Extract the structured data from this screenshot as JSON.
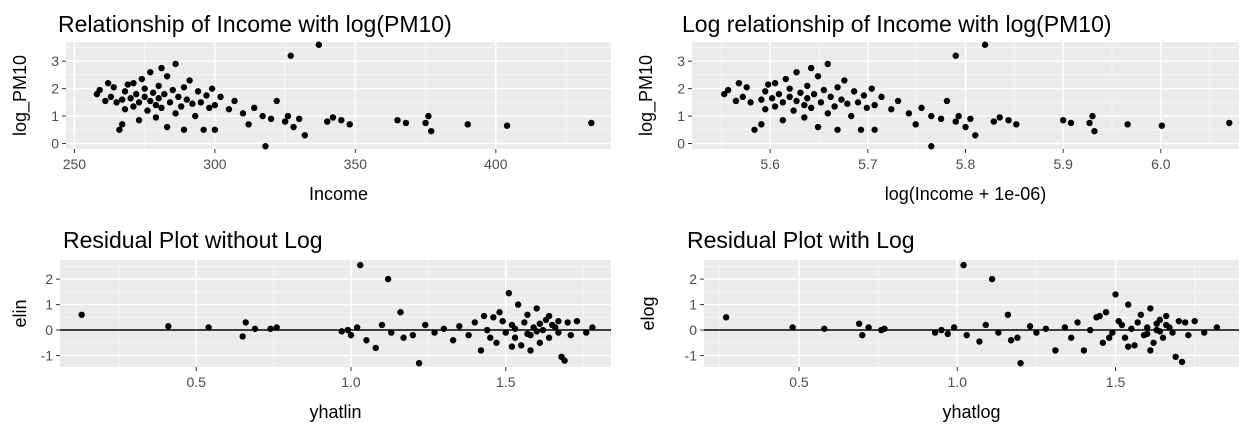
{
  "colors": {
    "panel_bg": "#ebebeb",
    "grid_major": "#ffffff",
    "grid_minor": "#f5f5f5",
    "point": "#000000",
    "hline": "#000000",
    "tick_text": "#4d4d4d"
  },
  "chart_data": [
    {
      "type": "scatter",
      "title": "Relationship of Income with log(PM10)",
      "xlabel": "Income",
      "ylabel": "log_PM10",
      "xlim": [
        247,
        441
      ],
      "ylim": [
        -0.2,
        3.7
      ],
      "xticks": [
        250,
        300,
        350,
        400
      ],
      "xtick_labels": [
        "250",
        "300",
        "350",
        "400"
      ],
      "yticks": [
        0,
        1,
        2,
        3
      ],
      "ytick_labels": [
        "0",
        "1",
        "2",
        "3"
      ],
      "grid": true,
      "hline": null,
      "points": [
        [
          258,
          1.8
        ],
        [
          259,
          1.95
        ],
        [
          261,
          1.55
        ],
        [
          262,
          2.2
        ],
        [
          263,
          1.7
        ],
        [
          264,
          2.05
        ],
        [
          265,
          1.5
        ],
        [
          266,
          0.5
        ],
        [
          267,
          0.7
        ],
        [
          267,
          1.6
        ],
        [
          268,
          1.25
        ],
        [
          268,
          1.9
        ],
        [
          269,
          2.15
        ],
        [
          270,
          1.65
        ],
        [
          271,
          1.35
        ],
        [
          271,
          2.2
        ],
        [
          272,
          1.8
        ],
        [
          273,
          0.85
        ],
        [
          273,
          1.5
        ],
        [
          274,
          2.35
        ],
        [
          275,
          1.7
        ],
        [
          275,
          2.0
        ],
        [
          276,
          1.2
        ],
        [
          277,
          1.55
        ],
        [
          277,
          2.6
        ],
        [
          278,
          1.85
        ],
        [
          279,
          0.95
        ],
        [
          279,
          1.4
        ],
        [
          280,
          2.1
        ],
        [
          280,
          1.65
        ],
        [
          281,
          2.75
        ],
        [
          281,
          1.3
        ],
        [
          282,
          1.8
        ],
        [
          283,
          0.6
        ],
        [
          283,
          2.45
        ],
        [
          284,
          1.5
        ],
        [
          285,
          1.95
        ],
        [
          286,
          1.1
        ],
        [
          286,
          2.9
        ],
        [
          287,
          1.7
        ],
        [
          288,
          1.35
        ],
        [
          289,
          0.5
        ],
        [
          289,
          2.05
        ],
        [
          290,
          1.6
        ],
        [
          291,
          2.3
        ],
        [
          292,
          1.45
        ],
        [
          293,
          1.0
        ],
        [
          294,
          1.9
        ],
        [
          295,
          1.5
        ],
        [
          296,
          0.5
        ],
        [
          297,
          1.75
        ],
        [
          298,
          1.3
        ],
        [
          299,
          2.0
        ],
        [
          300,
          1.4
        ],
        [
          300,
          0.5
        ],
        [
          302,
          1.7
        ],
        [
          305,
          1.25
        ],
        [
          307,
          1.55
        ],
        [
          310,
          1.1
        ],
        [
          312,
          0.7
        ],
        [
          314,
          1.3
        ],
        [
          317,
          1.0
        ],
        [
          318,
          -0.1
        ],
        [
          320,
          0.9
        ],
        [
          322,
          1.55
        ],
        [
          325,
          0.8
        ],
        [
          326,
          1.0
        ],
        [
          327,
          3.2
        ],
        [
          328,
          0.6
        ],
        [
          330,
          0.9
        ],
        [
          332,
          0.3
        ],
        [
          337,
          3.6
        ],
        [
          340,
          0.8
        ],
        [
          342,
          0.95
        ],
        [
          345,
          0.85
        ],
        [
          348,
          0.7
        ],
        [
          365,
          0.85
        ],
        [
          368,
          0.75
        ],
        [
          375,
          0.75
        ],
        [
          376,
          1.0
        ],
        [
          377,
          0.45
        ],
        [
          390,
          0.7
        ],
        [
          404,
          0.65
        ],
        [
          434,
          0.75
        ]
      ]
    },
    {
      "type": "scatter",
      "title": "Log relationship of Income with log(PM10)",
      "xlabel": "log(Income + 1e-06)",
      "ylabel": "log_PM10",
      "xlim": [
        5.52,
        6.08
      ],
      "ylim": [
        -0.2,
        3.7
      ],
      "xticks": [
        5.6,
        5.7,
        5.8,
        5.9,
        6.0
      ],
      "xtick_labels": [
        "5.6",
        "5.7",
        "5.8",
        "5.9",
        "6.0"
      ],
      "yticks": [
        0,
        1,
        2,
        3
      ],
      "ytick_labels": [
        "0",
        "1",
        "2",
        "3"
      ],
      "grid": true,
      "hline": null,
      "points": [
        [
          5.553,
          1.8
        ],
        [
          5.557,
          1.95
        ],
        [
          5.565,
          1.55
        ],
        [
          5.568,
          2.2
        ],
        [
          5.572,
          1.7
        ],
        [
          5.576,
          2.05
        ],
        [
          5.58,
          1.5
        ],
        [
          5.584,
          0.5
        ],
        [
          5.591,
          0.7
        ],
        [
          5.591,
          1.6
        ],
        [
          5.595,
          1.25
        ],
        [
          5.595,
          1.9
        ],
        [
          5.598,
          2.15
        ],
        [
          5.602,
          1.65
        ],
        [
          5.605,
          1.35
        ],
        [
          5.605,
          2.2
        ],
        [
          5.609,
          1.8
        ],
        [
          5.613,
          0.85
        ],
        [
          5.613,
          1.5
        ],
        [
          5.616,
          2.35
        ],
        [
          5.62,
          1.7
        ],
        [
          5.62,
          2.0
        ],
        [
          5.624,
          1.2
        ],
        [
          5.627,
          1.55
        ],
        [
          5.627,
          2.6
        ],
        [
          5.631,
          1.85
        ],
        [
          5.635,
          0.95
        ],
        [
          5.635,
          1.4
        ],
        [
          5.638,
          2.1
        ],
        [
          5.638,
          1.65
        ],
        [
          5.642,
          2.75
        ],
        [
          5.642,
          1.3
        ],
        [
          5.645,
          1.8
        ],
        [
          5.649,
          0.6
        ],
        [
          5.649,
          2.45
        ],
        [
          5.652,
          1.5
        ],
        [
          5.655,
          1.95
        ],
        [
          5.659,
          1.1
        ],
        [
          5.659,
          2.9
        ],
        [
          5.662,
          1.7
        ],
        [
          5.666,
          1.35
        ],
        [
          5.669,
          0.5
        ],
        [
          5.669,
          2.05
        ],
        [
          5.673,
          1.6
        ],
        [
          5.676,
          2.3
        ],
        [
          5.679,
          1.45
        ],
        [
          5.683,
          1.0
        ],
        [
          5.686,
          1.9
        ],
        [
          5.69,
          1.5
        ],
        [
          5.693,
          0.5
        ],
        [
          5.696,
          1.75
        ],
        [
          5.699,
          1.3
        ],
        [
          5.704,
          2.0
        ],
        [
          5.707,
          1.4
        ],
        [
          5.707,
          0.5
        ],
        [
          5.714,
          1.7
        ],
        [
          5.724,
          1.25
        ],
        [
          5.731,
          1.55
        ],
        [
          5.742,
          1.1
        ],
        [
          5.749,
          0.7
        ],
        [
          5.755,
          1.3
        ],
        [
          5.765,
          1.0
        ],
        [
          5.765,
          -0.1
        ],
        [
          5.775,
          0.9
        ],
        [
          5.781,
          1.55
        ],
        [
          5.79,
          0.8
        ],
        [
          5.793,
          1.0
        ],
        [
          5.79,
          3.2
        ],
        [
          5.8,
          0.6
        ],
        [
          5.805,
          0.9
        ],
        [
          5.81,
          0.3
        ],
        [
          5.82,
          3.6
        ],
        [
          5.829,
          0.8
        ],
        [
          5.835,
          0.95
        ],
        [
          5.844,
          0.85
        ],
        [
          5.852,
          0.7
        ],
        [
          5.9,
          0.85
        ],
        [
          5.908,
          0.75
        ],
        [
          5.927,
          0.75
        ],
        [
          5.93,
          1.0
        ],
        [
          5.932,
          0.45
        ],
        [
          5.966,
          0.7
        ],
        [
          6.001,
          0.65
        ],
        [
          6.07,
          0.75
        ]
      ]
    },
    {
      "type": "scatter",
      "title": "Residual Plot without Log",
      "xlabel": "yhatlin",
      "ylabel": "elin",
      "xlim": [
        0.06,
        1.84
      ],
      "ylim": [
        -1.45,
        2.75
      ],
      "xticks": [
        0.5,
        1.0,
        1.5
      ],
      "xtick_labels": [
        "0.5",
        "1.0",
        "1.5"
      ],
      "yticks": [
        -1,
        0,
        1,
        2
      ],
      "ytick_labels": [
        "-1",
        "0",
        "1",
        "2"
      ],
      "grid": true,
      "hline": 0,
      "points": [
        [
          0.13,
          0.6
        ],
        [
          0.41,
          0.15
        ],
        [
          0.54,
          0.1
        ],
        [
          0.65,
          -0.25
        ],
        [
          0.66,
          0.3
        ],
        [
          0.69,
          0.05
        ],
        [
          0.74,
          0.05
        ],
        [
          0.76,
          0.1
        ],
        [
          0.97,
          -0.05
        ],
        [
          0.99,
          0.0
        ],
        [
          1.0,
          -0.2
        ],
        [
          1.02,
          0.1
        ],
        [
          1.03,
          2.55
        ],
        [
          1.05,
          -0.4
        ],
        [
          1.08,
          -0.7
        ],
        [
          1.1,
          0.2
        ],
        [
          1.12,
          2.0
        ],
        [
          1.13,
          -0.1
        ],
        [
          1.16,
          0.7
        ],
        [
          1.17,
          -0.3
        ],
        [
          1.2,
          -0.2
        ],
        [
          1.22,
          -1.3
        ],
        [
          1.24,
          0.2
        ],
        [
          1.27,
          -0.1
        ],
        [
          1.3,
          0.05
        ],
        [
          1.33,
          -0.4
        ],
        [
          1.35,
          0.15
        ],
        [
          1.38,
          -0.2
        ],
        [
          1.4,
          0.3
        ],
        [
          1.42,
          -0.8
        ],
        [
          1.44,
          0.0
        ],
        [
          1.46,
          0.5
        ],
        [
          1.47,
          -0.5
        ],
        [
          1.48,
          0.7
        ],
        [
          1.5,
          -0.1
        ],
        [
          1.51,
          1.45
        ],
        [
          1.52,
          0.2
        ],
        [
          1.53,
          -0.3
        ],
        [
          1.54,
          1.0
        ],
        [
          1.55,
          -0.6
        ],
        [
          1.56,
          0.3
        ],
        [
          1.57,
          0.6
        ],
        [
          1.58,
          -0.2
        ],
        [
          1.59,
          0.1
        ],
        [
          1.6,
          0.85
        ],
        [
          1.61,
          -0.5
        ],
        [
          1.62,
          0.0
        ],
        [
          1.63,
          0.4
        ],
        [
          1.64,
          -0.3
        ],
        [
          1.65,
          0.2
        ],
        [
          1.66,
          0.1
        ],
        [
          1.67,
          -0.1
        ],
        [
          1.68,
          -1.05
        ],
        [
          1.69,
          -1.2
        ],
        [
          1.7,
          0.3
        ],
        [
          1.71,
          -0.2
        ],
        [
          1.73,
          0.35
        ],
        [
          1.76,
          -0.1
        ],
        [
          1.78,
          0.1
        ],
        [
          1.45,
          -0.3
        ],
        [
          1.49,
          0.35
        ],
        [
          1.53,
          0.05
        ],
        [
          1.57,
          -0.15
        ],
        [
          1.61,
          0.25
        ],
        [
          1.64,
          0.55
        ],
        [
          1.58,
          -0.8
        ],
        [
          1.52,
          -0.65
        ],
        [
          1.43,
          0.55
        ],
        [
          1.67,
          0.35
        ],
        [
          1.6,
          -0.05
        ]
      ]
    },
    {
      "type": "scatter",
      "title": "Residual Plot with Log",
      "xlabel": "yhatlog",
      "ylabel": "elog",
      "xlim": [
        0.2,
        1.89
      ],
      "ylim": [
        -1.45,
        2.75
      ],
      "xticks": [
        0.5,
        1.0,
        1.5
      ],
      "xtick_labels": [
        "0.5",
        "1.0",
        "1.5"
      ],
      "yticks": [
        -1,
        0,
        1,
        2
      ],
      "ytick_labels": [
        "-1",
        "0",
        "1",
        "2"
      ],
      "grid": true,
      "hline": 0,
      "points": [
        [
          0.27,
          0.5
        ],
        [
          0.48,
          0.1
        ],
        [
          0.58,
          0.05
        ],
        [
          0.69,
          0.25
        ],
        [
          0.7,
          -0.2
        ],
        [
          0.72,
          0.1
        ],
        [
          0.76,
          0.0
        ],
        [
          0.77,
          0.05
        ],
        [
          0.93,
          -0.1
        ],
        [
          0.95,
          0.0
        ],
        [
          0.97,
          -0.15
        ],
        [
          0.99,
          0.1
        ],
        [
          1.02,
          2.55
        ],
        [
          1.03,
          -0.2
        ],
        [
          1.07,
          -0.45
        ],
        [
          1.09,
          0.2
        ],
        [
          1.11,
          2.0
        ],
        [
          1.13,
          -0.1
        ],
        [
          1.16,
          0.6
        ],
        [
          1.17,
          -0.4
        ],
        [
          1.19,
          -0.3
        ],
        [
          1.2,
          -1.3
        ],
        [
          1.23,
          0.15
        ],
        [
          1.25,
          -0.1
        ],
        [
          1.28,
          0.05
        ],
        [
          1.31,
          -0.8
        ],
        [
          1.34,
          0.1
        ],
        [
          1.36,
          -0.3
        ],
        [
          1.38,
          0.3
        ],
        [
          1.4,
          -0.8
        ],
        [
          1.42,
          0.0
        ],
        [
          1.44,
          0.5
        ],
        [
          1.46,
          -0.5
        ],
        [
          1.47,
          0.7
        ],
        [
          1.49,
          -0.1
        ],
        [
          1.5,
          1.4
        ],
        [
          1.52,
          0.2
        ],
        [
          1.53,
          -0.3
        ],
        [
          1.54,
          1.0
        ],
        [
          1.56,
          -0.6
        ],
        [
          1.57,
          0.3
        ],
        [
          1.58,
          0.6
        ],
        [
          1.59,
          -0.2
        ],
        [
          1.6,
          0.1
        ],
        [
          1.61,
          0.85
        ],
        [
          1.62,
          -0.5
        ],
        [
          1.63,
          0.0
        ],
        [
          1.64,
          0.4
        ],
        [
          1.65,
          -0.3
        ],
        [
          1.66,
          0.2
        ],
        [
          1.67,
          0.1
        ],
        [
          1.68,
          -0.1
        ],
        [
          1.69,
          -1.05
        ],
        [
          1.71,
          -1.25
        ],
        [
          1.72,
          0.3
        ],
        [
          1.73,
          -0.2
        ],
        [
          1.75,
          0.35
        ],
        [
          1.78,
          -0.1
        ],
        [
          1.82,
          0.1
        ],
        [
          1.48,
          -0.3
        ],
        [
          1.51,
          0.35
        ],
        [
          1.55,
          0.05
        ],
        [
          1.6,
          -0.15
        ],
        [
          1.63,
          0.25
        ],
        [
          1.66,
          0.55
        ],
        [
          1.61,
          -0.8
        ],
        [
          1.54,
          -0.65
        ],
        [
          1.45,
          0.55
        ],
        [
          1.7,
          0.35
        ],
        [
          1.64,
          -0.05
        ]
      ]
    }
  ]
}
